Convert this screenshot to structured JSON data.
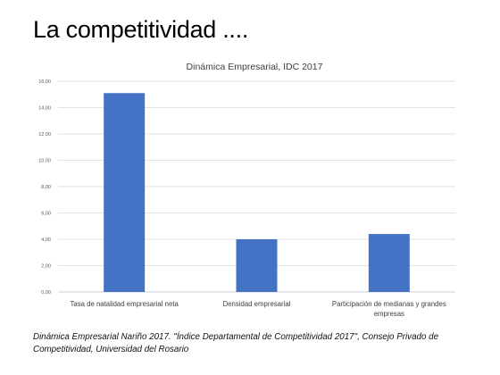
{
  "slide": {
    "title": "La competitividad ....",
    "caption": "Dinámica Empresarial Nariño 2017. \"Índice Departamental de Competitividad 2017\", Consejo Privado de Competitividad, Universidad del Rosario"
  },
  "chart_data": {
    "type": "bar",
    "title": "Dinámica Empresarial, IDC 2017",
    "categories": [
      "Tasa de natalidad empresarial neta",
      "Densidad empresarial",
      "Participación de medianas y grandes empresas"
    ],
    "category_label_lines": [
      [
        "Tasa de natalidad empresarial neta"
      ],
      [
        "Densidad empresarial"
      ],
      [
        "Participación de medianas y grandes",
        "empresas"
      ]
    ],
    "values": [
      15.1,
      4.0,
      4.4
    ],
    "ylim": [
      0,
      16
    ],
    "yticks": [
      0,
      2,
      4,
      6,
      8,
      10,
      12,
      14,
      16
    ],
    "ytick_labels": [
      "0,00",
      "2,00",
      "4,00",
      "6,00",
      "8,00",
      "10,00",
      "12,00",
      "14,00",
      "16,00"
    ],
    "grid": true,
    "legend": "none",
    "bar_color": "#4472c4",
    "grid_color": "#d9d9d9"
  }
}
